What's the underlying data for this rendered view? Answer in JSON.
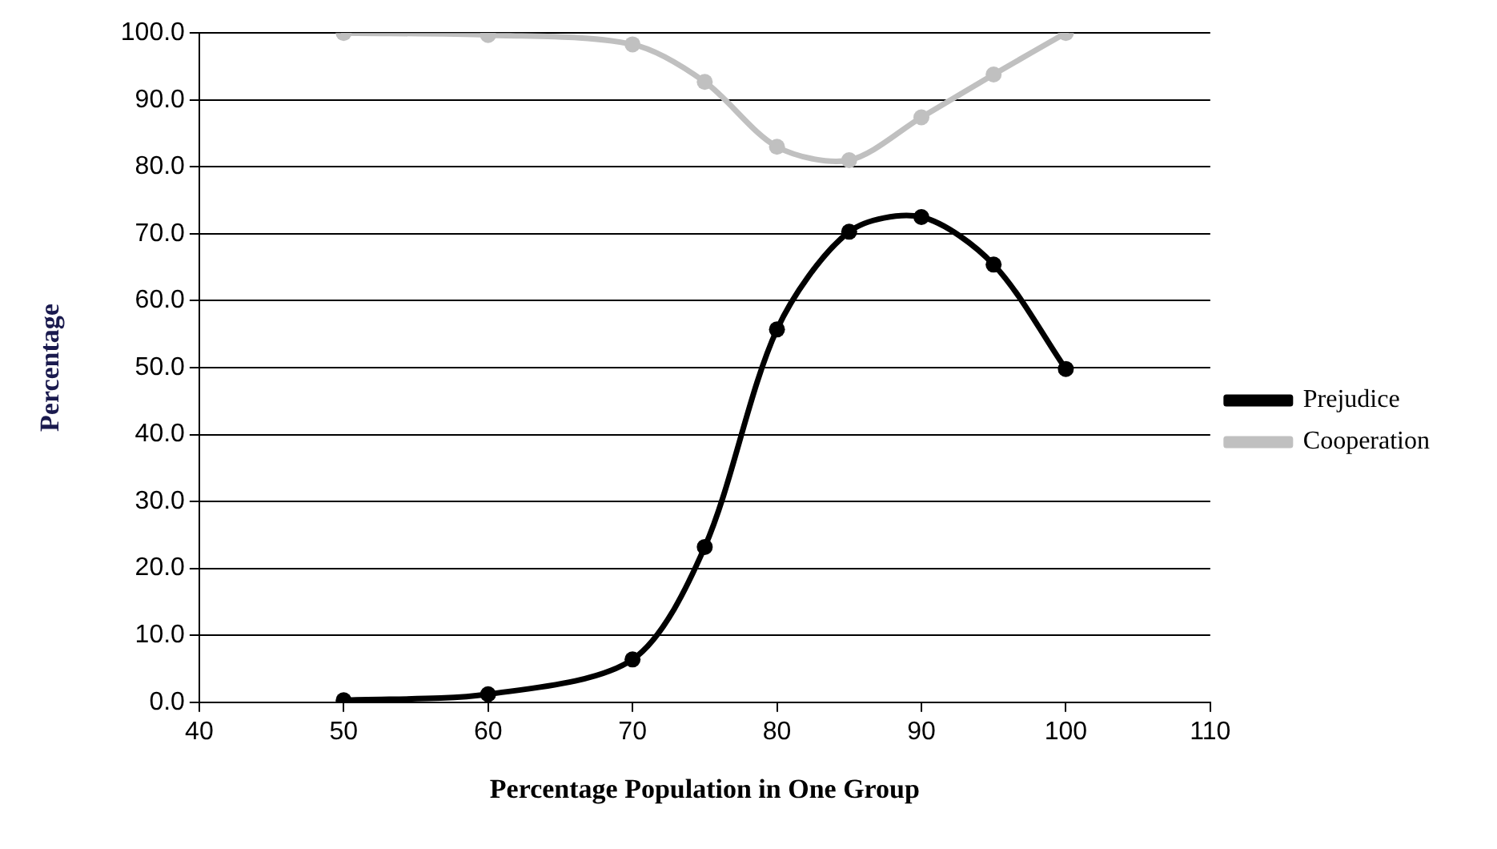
{
  "chart_data": {
    "type": "line",
    "xlabel": "Percentage Population in One Group",
    "ylabel": "Percentage",
    "x": [
      50,
      60,
      70,
      75,
      80,
      85,
      90,
      95,
      100
    ],
    "series": [
      {
        "name": "Prejudice",
        "color": "#000000",
        "values": [
          0.3,
          1.2,
          6.4,
          23.2,
          55.7,
          70.3,
          72.5,
          65.4,
          49.8
        ]
      },
      {
        "name": "Cooperation",
        "color": "#c0c0c0",
        "values": [
          100,
          99.7,
          98.3,
          92.7,
          83.0,
          81.0,
          87.4,
          93.8,
          100
        ]
      }
    ],
    "xlim": [
      40,
      110
    ],
    "xticks": [
      40,
      50,
      60,
      70,
      80,
      90,
      100,
      110
    ],
    "ylim": [
      0,
      100
    ],
    "yticks": [
      {
        "value": 0,
        "label": "0.0"
      },
      {
        "value": 10,
        "label": "10.0"
      },
      {
        "value": 20,
        "label": "20.0"
      },
      {
        "value": 30,
        "label": "30.0"
      },
      {
        "value": 40,
        "label": "40.0"
      },
      {
        "value": 50,
        "label": "50.0"
      },
      {
        "value": 60,
        "label": "60.0"
      },
      {
        "value": 70,
        "label": "70.0"
      },
      {
        "value": 80,
        "label": "80.0"
      },
      {
        "value": 90,
        "label": "90.0"
      },
      {
        "value": 100,
        "label": "100.0"
      }
    ],
    "grid": "y",
    "legend": "right",
    "marker": "circle",
    "line_style": "solid"
  }
}
